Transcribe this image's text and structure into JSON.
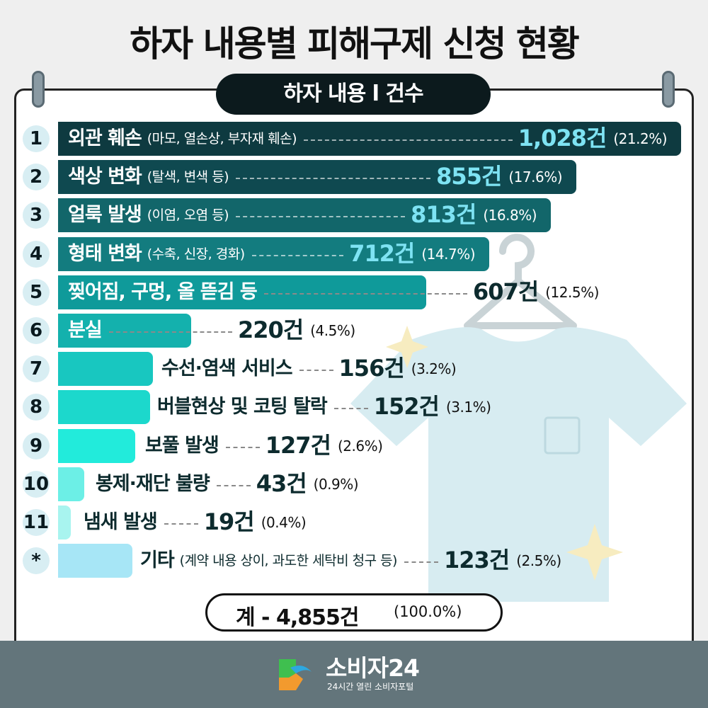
{
  "header": {
    "title": "하자 내용별 피해구제 신청 현황",
    "subtitle": "하자 내용 l 건수"
  },
  "chart_data": {
    "type": "bar",
    "orientation": "horizontal",
    "categories": [
      "외관 훼손 (마모, 열손상, 부자재 훼손)",
      "색상 변화 (탈색, 변색 등)",
      "얼룩 발생 (이염, 오염 등)",
      "형태 변화 (수축, 신장, 경화)",
      "찢어짐, 구멍, 올 뜯김 등",
      "분실",
      "수선·염색 서비스",
      "버블현상 및 코팅 탈락",
      "보풀 발생",
      "봉제·재단 불량",
      "냄새 발생",
      "기타 (계약 내용 상이, 과도한 세탁비 청구 등)"
    ],
    "values": [
      1028,
      855,
      813,
      712,
      607,
      220,
      156,
      152,
      127,
      43,
      19,
      123
    ],
    "percent": [
      21.2,
      17.6,
      16.8,
      14.7,
      12.5,
      4.5,
      3.2,
      3.1,
      2.6,
      0.9,
      0.4,
      2.5
    ],
    "total": 4855,
    "total_percent": 100.0
  },
  "rows": [
    {
      "rank": "1",
      "main": "외관 훼손",
      "sub": "(마모, 열손상, 부자재 훼손)",
      "count": "1,028건",
      "pct": "(21.2%)",
      "color": "#0e3a40"
    },
    {
      "rank": "2",
      "main": "색상 변화",
      "sub": "(탈색, 변색 등)",
      "count": "855건",
      "pct": "(17.6%)",
      "color": "#0f4950"
    },
    {
      "rank": "3",
      "main": "얼룩 발생",
      "sub": "(이염, 오염 등)",
      "count": "813건",
      "pct": "(16.8%)",
      "color": "#12666a"
    },
    {
      "rank": "4",
      "main": "형태 변화",
      "sub": "(수축, 신장, 경화)",
      "count": "712건",
      "pct": "(14.7%)",
      "color": "#137c7f"
    },
    {
      "rank": "5",
      "main": "찢어짐, 구멍, 올 뜯김 등",
      "sub": "",
      "count": "607건",
      "pct": "(12.5%)",
      "color": "#0f9a9a"
    },
    {
      "rank": "6",
      "main": "분실",
      "sub": "",
      "count": "220건",
      "pct": "(4.5%)",
      "color": "#14b1ad"
    },
    {
      "rank": "7",
      "main": "수선·염색 서비스",
      "sub": "",
      "count": "156건",
      "pct": "(3.2%)",
      "color": "#18c7c0"
    },
    {
      "rank": "8",
      "main": "버블현상 및 코팅 탈락",
      "sub": "",
      "count": "152건",
      "pct": "(3.1%)",
      "color": "#1cd8cc"
    },
    {
      "rank": "9",
      "main": "보풀 발생",
      "sub": "",
      "count": "127건",
      "pct": "(2.6%)",
      "color": "#22ebdb"
    },
    {
      "rank": "10",
      "main": "봉제·재단 불량",
      "sub": "",
      "count": "43건",
      "pct": "(0.9%)",
      "color": "#6cefe6"
    },
    {
      "rank": "11",
      "main": "냄새 발생",
      "sub": "",
      "count": "19건",
      "pct": "(0.4%)",
      "color": "#a8f4ef"
    },
    {
      "rank": "*",
      "main": "기타",
      "sub": "(계약 내용 상이, 과도한 세탁비 청구 등)",
      "count": "123건",
      "pct": "(2.5%)",
      "color": "#a7e6f6"
    }
  ],
  "total": {
    "main": "계 - 4,855건",
    "pct": "(100.0%)"
  },
  "footer": {
    "brand": "소비자24",
    "tagline": "24시간 열린 소비자포털"
  },
  "colors": {
    "count_light": "#7ee3f3",
    "count_dark": "#0d2b2e",
    "label_light": "#ffffff",
    "label_dark": "#0d2b2e",
    "footer_bg": "#63757b"
  }
}
